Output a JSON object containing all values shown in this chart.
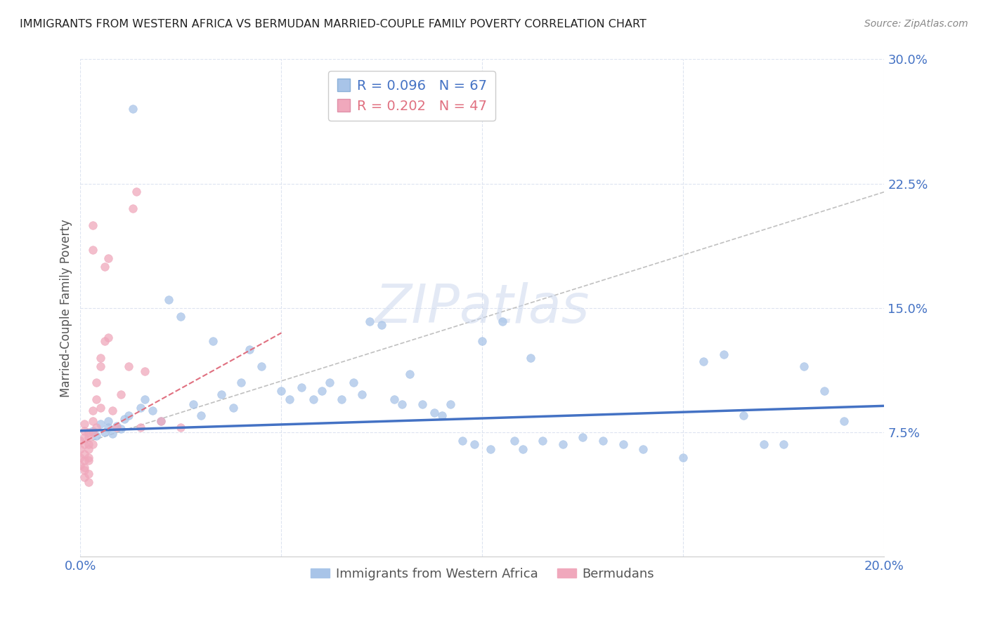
{
  "title": "IMMIGRANTS FROM WESTERN AFRICA VS BERMUDAN MARRIED-COUPLE FAMILY POVERTY CORRELATION CHART",
  "source": "Source: ZipAtlas.com",
  "ylabel": "Married-Couple Family Poverty",
  "watermark": "ZIPatlas",
  "xlim": [
    0.0,
    0.2
  ],
  "ylim": [
    0.0,
    0.3
  ],
  "xticks": [
    0.0,
    0.05,
    0.1,
    0.15,
    0.2
  ],
  "xticklabels": [
    "0.0%",
    "",
    "",
    "",
    "20.0%"
  ],
  "yticks": [
    0.075,
    0.15,
    0.225,
    0.3
  ],
  "yticklabels": [
    "7.5%",
    "15.0%",
    "22.5%",
    "30.0%"
  ],
  "blue_R": "R = 0.096",
  "blue_N": "N = 67",
  "pink_R": "R = 0.202",
  "pink_N": "N = 47",
  "blue_color": "#a8c4e8",
  "pink_color": "#f0a8bc",
  "blue_line_color": "#4472c4",
  "pink_line_color": "#e07080",
  "legend_label_blue": "Immigrants from Western Africa",
  "legend_label_pink": "Bermudans",
  "blue_scatter_x": [
    0.003,
    0.004,
    0.005,
    0.006,
    0.007,
    0.007,
    0.008,
    0.009,
    0.01,
    0.011,
    0.012,
    0.013,
    0.015,
    0.016,
    0.018,
    0.02,
    0.022,
    0.025,
    0.028,
    0.03,
    0.033,
    0.035,
    0.038,
    0.04,
    0.042,
    0.045,
    0.05,
    0.052,
    0.055,
    0.058,
    0.06,
    0.062,
    0.065,
    0.068,
    0.07,
    0.072,
    0.075,
    0.078,
    0.08,
    0.082,
    0.085,
    0.088,
    0.09,
    0.092,
    0.095,
    0.098,
    0.1,
    0.102,
    0.105,
    0.108,
    0.11,
    0.112,
    0.115,
    0.12,
    0.125,
    0.13,
    0.135,
    0.14,
    0.15,
    0.155,
    0.16,
    0.165,
    0.17,
    0.175,
    0.18,
    0.185,
    0.19
  ],
  "blue_scatter_y": [
    0.076,
    0.073,
    0.08,
    0.075,
    0.078,
    0.082,
    0.074,
    0.079,
    0.077,
    0.083,
    0.085,
    0.27,
    0.09,
    0.095,
    0.088,
    0.082,
    0.155,
    0.145,
    0.092,
    0.085,
    0.13,
    0.098,
    0.09,
    0.105,
    0.125,
    0.115,
    0.1,
    0.095,
    0.102,
    0.095,
    0.1,
    0.105,
    0.095,
    0.105,
    0.098,
    0.142,
    0.14,
    0.095,
    0.092,
    0.11,
    0.092,
    0.087,
    0.085,
    0.092,
    0.07,
    0.068,
    0.13,
    0.065,
    0.142,
    0.07,
    0.065,
    0.12,
    0.07,
    0.068,
    0.072,
    0.07,
    0.068,
    0.065,
    0.06,
    0.118,
    0.122,
    0.085,
    0.068,
    0.068,
    0.115,
    0.1,
    0.082
  ],
  "pink_scatter_x": [
    0.0,
    0.0,
    0.0,
    0.0,
    0.001,
    0.001,
    0.001,
    0.001,
    0.001,
    0.001,
    0.001,
    0.001,
    0.001,
    0.002,
    0.002,
    0.002,
    0.002,
    0.002,
    0.002,
    0.002,
    0.002,
    0.003,
    0.003,
    0.003,
    0.003,
    0.003,
    0.003,
    0.004,
    0.004,
    0.004,
    0.005,
    0.005,
    0.005,
    0.006,
    0.006,
    0.007,
    0.007,
    0.008,
    0.009,
    0.01,
    0.012,
    0.013,
    0.014,
    0.015,
    0.016,
    0.02,
    0.025
  ],
  "pink_scatter_y": [
    0.07,
    0.065,
    0.06,
    0.055,
    0.068,
    0.072,
    0.076,
    0.08,
    0.058,
    0.062,
    0.054,
    0.052,
    0.048,
    0.065,
    0.068,
    0.072,
    0.075,
    0.06,
    0.058,
    0.05,
    0.045,
    0.068,
    0.075,
    0.082,
    0.088,
    0.185,
    0.2,
    0.078,
    0.095,
    0.105,
    0.09,
    0.115,
    0.12,
    0.175,
    0.13,
    0.132,
    0.18,
    0.088,
    0.078,
    0.098,
    0.115,
    0.21,
    0.22,
    0.078,
    0.112,
    0.082,
    0.078
  ],
  "blue_trend_x": [
    0.0,
    0.2
  ],
  "blue_trend_y": [
    0.076,
    0.091
  ],
  "pink_trend_x": [
    0.0,
    0.05
  ],
  "pink_trend_y": [
    0.068,
    0.135
  ],
  "background_color": "#ffffff",
  "grid_color": "#dde4f0",
  "title_fontsize": 11.5,
  "tick_label_color": "#4472c4",
  "source_color": "#888888"
}
